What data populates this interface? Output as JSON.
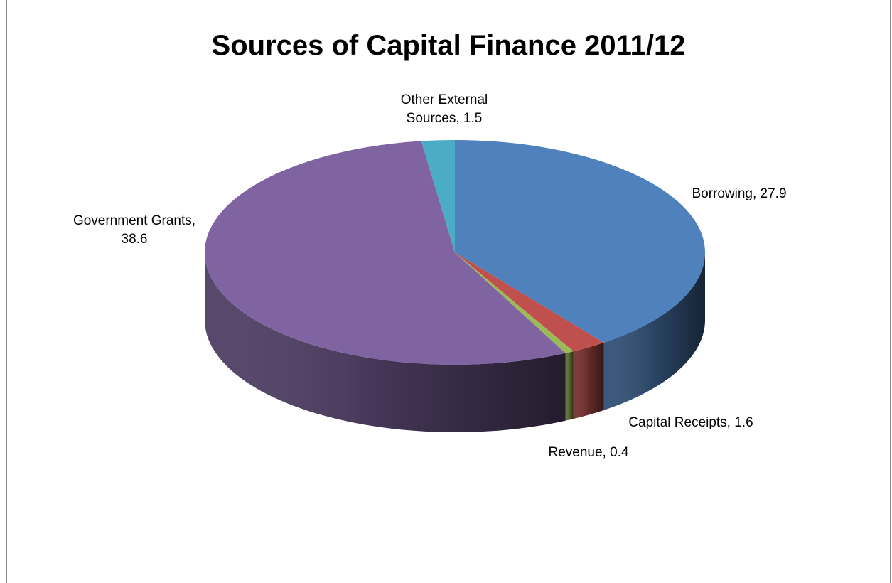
{
  "chart_data": {
    "type": "pie",
    "title": "Sources of Capital Finance 2011/12",
    "slices": [
      {
        "name": "Borrowing",
        "value": 27.9,
        "label_lines": [
          "Borrowing, 27.9"
        ],
        "color": "#4F81BD"
      },
      {
        "name": "Capital Receipts",
        "value": 1.6,
        "label_lines": [
          "Capital Receipts, 1.6"
        ],
        "color": "#C0504D"
      },
      {
        "name": "Revenue",
        "value": 0.4,
        "label_lines": [
          "Revenue, 0.4"
        ],
        "color": "#9BBB59"
      },
      {
        "name": "Government Grants",
        "value": 38.6,
        "label_lines": [
          "Government Grants,",
          "38.6"
        ],
        "color": "#8064A2"
      },
      {
        "name": "Other External Sources",
        "value": 1.5,
        "label_lines": [
          "Other External",
          "Sources, 1.5"
        ],
        "color": "#4BACC6"
      }
    ],
    "style": "3d-pie",
    "legend": "none"
  }
}
